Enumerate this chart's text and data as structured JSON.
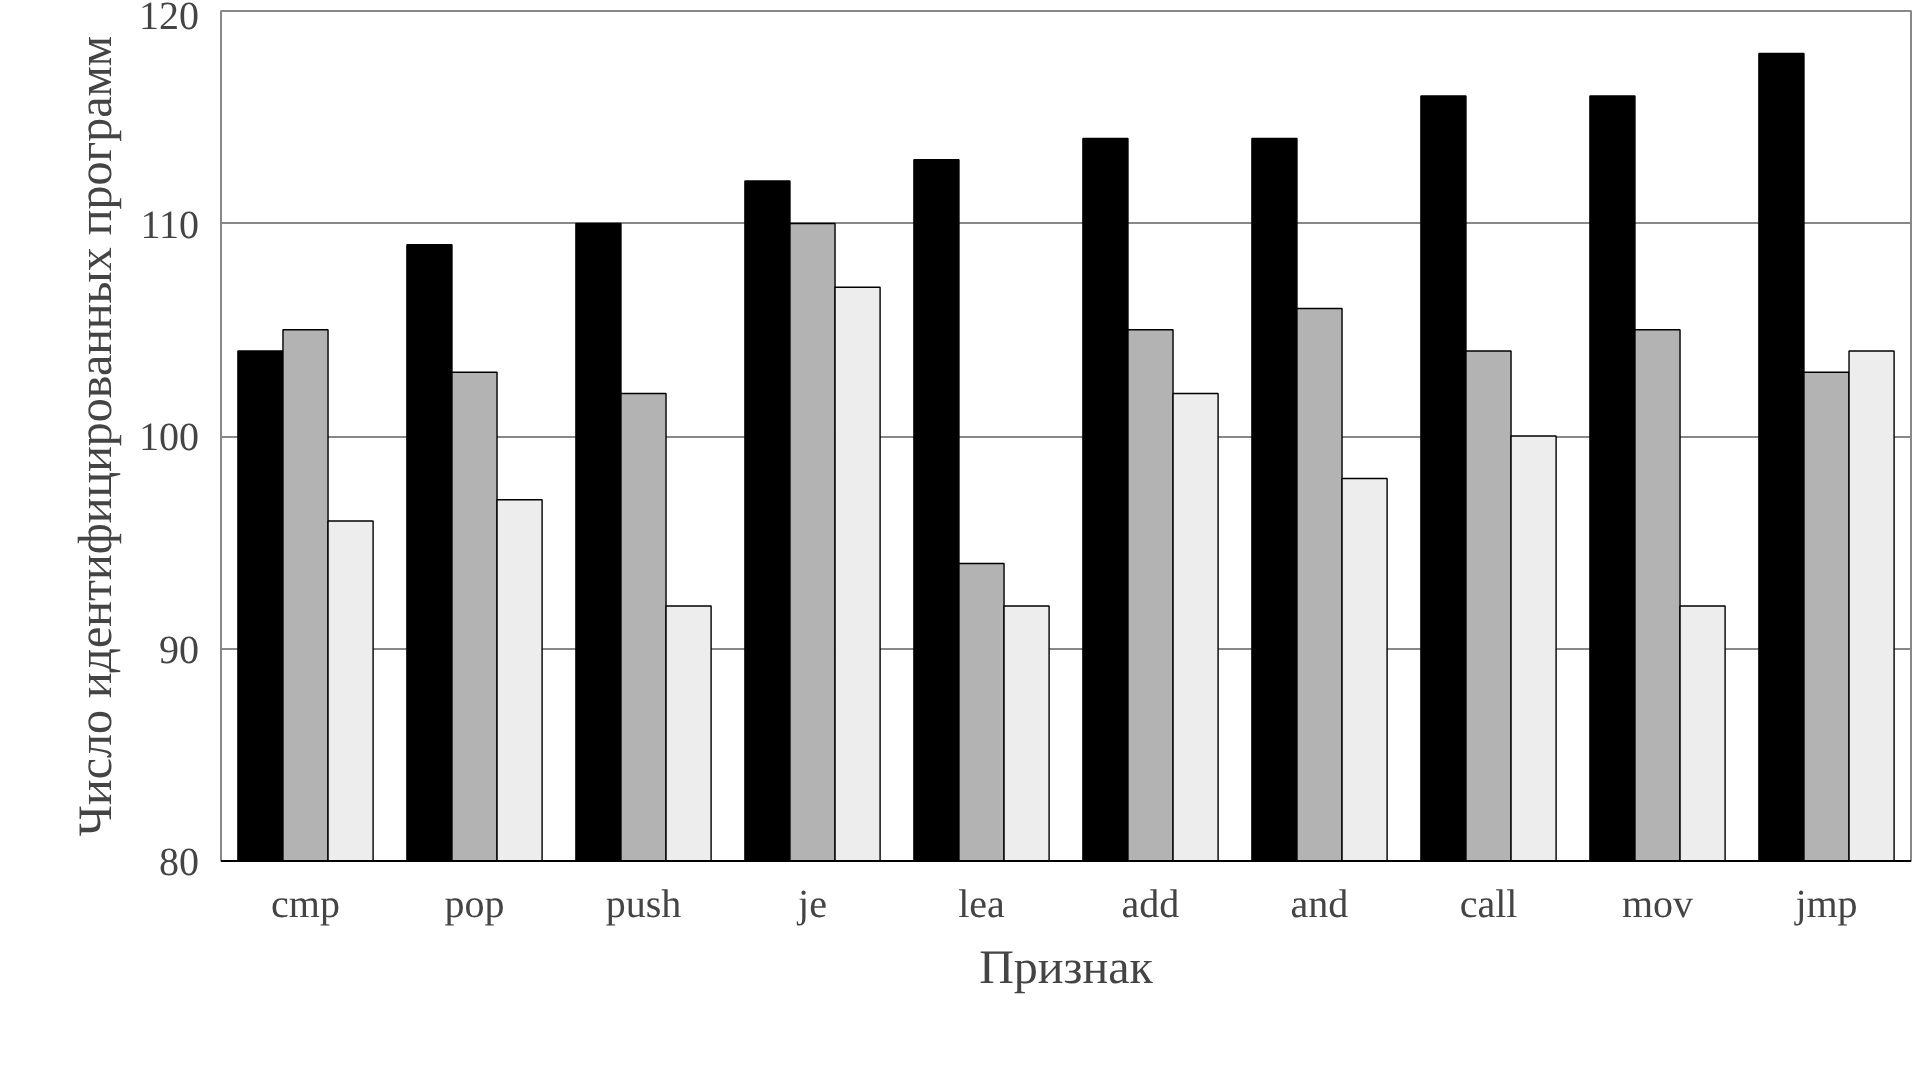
{
  "chart_data": {
    "type": "bar",
    "xlabel": "Признак",
    "ylabel": "Число идентифицированных программ",
    "categories": [
      "cmp",
      "pop",
      "push",
      "je",
      "lea",
      "add",
      "and",
      "call",
      "mov",
      "jmp"
    ],
    "series": [
      {
        "color": "#000000",
        "values": [
          104,
          109,
          110,
          112,
          113,
          114,
          114,
          116,
          116,
          118
        ]
      },
      {
        "color": "#b3b3b3",
        "values": [
          105,
          103,
          102,
          110,
          94,
          105,
          106,
          104,
          105,
          103
        ]
      },
      {
        "color": "#ededed",
        "values": [
          96,
          97,
          92,
          107,
          92,
          102,
          98,
          100,
          92,
          104
        ]
      }
    ],
    "ylim": [
      80,
      120
    ],
    "yticks": [
      80,
      90,
      100,
      110,
      120
    ],
    "grid": "y"
  }
}
